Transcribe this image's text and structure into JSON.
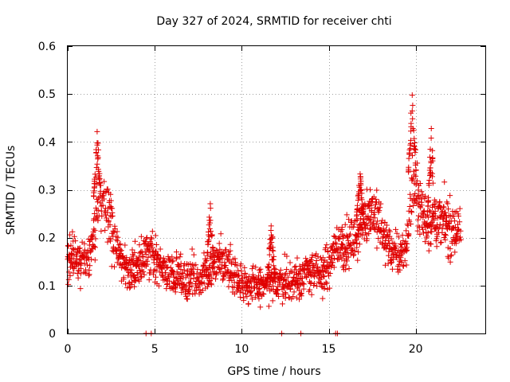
{
  "chart_data": {
    "type": "scatter",
    "title": "Day 327 of 2024, SRMTID for receiver chti",
    "xlabel": "GPS time / hours",
    "ylabel": "SRMTID / TECUs",
    "xlim": [
      0,
      24
    ],
    "ylim": [
      0,
      0.6
    ],
    "xticks": [
      0,
      5,
      10,
      15,
      20
    ],
    "yticks": [
      0,
      0.1,
      0.2,
      0.3,
      0.4,
      0.5,
      0.6
    ],
    "xtick_labels": [
      "0",
      "5",
      "10",
      "15",
      "20"
    ],
    "ytick_labels": [
      "0",
      "0.1",
      "0.2",
      "0.3",
      "0.4",
      "0.5",
      "0.6"
    ],
    "grid": true,
    "marker": "+",
    "marker_color": "#e00000",
    "trend": [
      [
        0.0,
        0.17
      ],
      [
        0.5,
        0.16
      ],
      [
        1.0,
        0.15
      ],
      [
        1.4,
        0.18
      ],
      [
        1.8,
        0.29
      ],
      [
        2.2,
        0.27
      ],
      [
        2.6,
        0.21
      ],
      [
        3.0,
        0.16
      ],
      [
        3.5,
        0.13
      ],
      [
        4.0,
        0.14
      ],
      [
        4.5,
        0.17
      ],
      [
        5.0,
        0.15
      ],
      [
        5.5,
        0.13
      ],
      [
        6.0,
        0.12
      ],
      [
        6.5,
        0.12
      ],
      [
        7.0,
        0.11
      ],
      [
        7.5,
        0.11
      ],
      [
        8.0,
        0.13
      ],
      [
        8.5,
        0.15
      ],
      [
        9.0,
        0.15
      ],
      [
        9.5,
        0.13
      ],
      [
        10.0,
        0.11
      ],
      [
        10.5,
        0.1
      ],
      [
        11.0,
        0.1
      ],
      [
        11.5,
        0.1
      ],
      [
        12.0,
        0.11
      ],
      [
        12.5,
        0.11
      ],
      [
        13.0,
        0.11
      ],
      [
        13.5,
        0.12
      ],
      [
        14.0,
        0.13
      ],
      [
        14.5,
        0.12
      ],
      [
        15.0,
        0.14
      ],
      [
        15.5,
        0.19
      ],
      [
        16.0,
        0.18
      ],
      [
        16.5,
        0.2
      ],
      [
        17.0,
        0.24
      ],
      [
        17.5,
        0.26
      ],
      [
        18.0,
        0.22
      ],
      [
        18.5,
        0.18
      ],
      [
        19.0,
        0.16
      ],
      [
        19.5,
        0.19
      ],
      [
        19.8,
        0.32
      ],
      [
        20.2,
        0.27
      ],
      [
        20.6,
        0.23
      ],
      [
        21.0,
        0.24
      ],
      [
        21.5,
        0.23
      ],
      [
        22.0,
        0.22
      ],
      [
        22.6,
        0.21
      ]
    ],
    "spikes": [
      {
        "x": 1.7,
        "peak": 0.43
      },
      {
        "x": 8.2,
        "peak": 0.28
      },
      {
        "x": 11.7,
        "peak": 0.24
      },
      {
        "x": 16.8,
        "peak": 0.35
      },
      {
        "x": 19.8,
        "peak": 0.52
      },
      {
        "x": 20.9,
        "peak": 0.44
      }
    ],
    "zero_points": [
      4.5,
      4.8,
      12.3,
      13.4,
      15.4,
      15.5
    ]
  }
}
